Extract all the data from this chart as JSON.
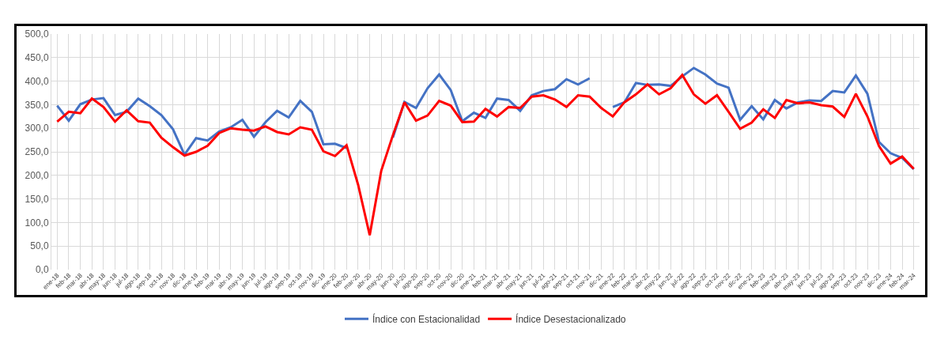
{
  "chart_data": {
    "type": "line",
    "categories": [
      "ene-18",
      "feb-18",
      "mar-18",
      "abr-18",
      "may-18",
      "jun-18",
      "jul-18",
      "ago-18",
      "sep-18",
      "oct-18",
      "nov-18",
      "dic-18",
      "ene-19",
      "feb-19",
      "mar-19",
      "abr-19",
      "may-19",
      "jun-19",
      "jul-19",
      "ago-19",
      "sep-19",
      "oct-19",
      "nov-19",
      "dic-19",
      "ene-20",
      "feb-20",
      "mar-20",
      "abr-20",
      "may-20",
      "jun-20",
      "jul-20",
      "ago-20",
      "sep-20",
      "oct-20",
      "nov-20",
      "dic-20",
      "ene-21",
      "feb-21",
      "mar-21",
      "abr-21",
      "may-21",
      "jun-21",
      "jul-21",
      "ago-21",
      "sep-21",
      "oct-21",
      "nov-21",
      "dic-21",
      "ene-22",
      "feb-22",
      "mar-22",
      "abr-22",
      "may-22",
      "jun-22",
      "jul-22",
      "ago-22",
      "sep-22",
      "oct-22",
      "nov-22",
      "dic-22",
      "ene-23",
      "feb-23",
      "mar-23",
      "abr-23",
      "may-23",
      "jun-23",
      "jul-23",
      "ago-23",
      "sep-23",
      "oct-23",
      "nov-23",
      "dic-23",
      "ene-24",
      "feb-24",
      "mar-24"
    ],
    "series": [
      {
        "name": "Índice con Estacionalidad",
        "color": "#4472c4",
        "values": [
          348,
          316,
          351,
          361,
          364,
          328,
          335,
          363,
          347,
          328,
          298,
          244,
          279,
          274,
          293,
          302,
          318,
          282,
          313,
          337,
          323,
          358,
          335,
          266,
          267,
          258,
          null,
          null,
          null,
          280,
          356,
          343,
          385,
          414,
          381,
          315,
          333,
          322,
          363,
          360,
          337,
          370,
          379,
          383,
          404,
          393,
          406,
          null,
          345,
          355,
          396,
          392,
          393,
          390,
          410,
          428,
          414,
          395,
          386,
          318,
          347,
          319,
          360,
          342,
          355,
          359,
          358,
          379,
          376,
          412,
          373,
          271,
          247,
          237,
          213
        ]
      },
      {
        "name": "Índice Desestacionalizado",
        "color": "#ff0000",
        "values": [
          314,
          335,
          332,
          363,
          345,
          314,
          338,
          315,
          312,
          280,
          260,
          242,
          250,
          263,
          290,
          300,
          297,
          295,
          304,
          292,
          287,
          302,
          297,
          251,
          241,
          264,
          180,
          73,
          210,
          285,
          355,
          316,
          327,
          358,
          348,
          313,
          314,
          341,
          325,
          345,
          343,
          367,
          370,
          361,
          345,
          370,
          367,
          343,
          325,
          355,
          372,
          393,
          372,
          385,
          413,
          372,
          352,
          370,
          335,
          299,
          312,
          340,
          322,
          360,
          353,
          355,
          349,
          346,
          324,
          373,
          325,
          262,
          225,
          240,
          214
        ]
      }
    ],
    "ylim": [
      0,
      500
    ],
    "yticks": [
      {
        "value": 0,
        "label": "0,0"
      },
      {
        "value": 50,
        "label": "50,0"
      },
      {
        "value": 100,
        "label": "100,0"
      },
      {
        "value": 150,
        "label": "150,0"
      },
      {
        "value": 200,
        "label": "200,0"
      },
      {
        "value": 250,
        "label": "250,0"
      },
      {
        "value": 300,
        "label": "300,0"
      },
      {
        "value": 350,
        "label": "350,0"
      },
      {
        "value": 400,
        "label": "400,0"
      },
      {
        "value": 450,
        "label": "450,0"
      },
      {
        "value": 500,
        "label": "500,0"
      }
    ],
    "grid": true,
    "legend": "bottom",
    "marker": "none",
    "line_style": "solid"
  }
}
